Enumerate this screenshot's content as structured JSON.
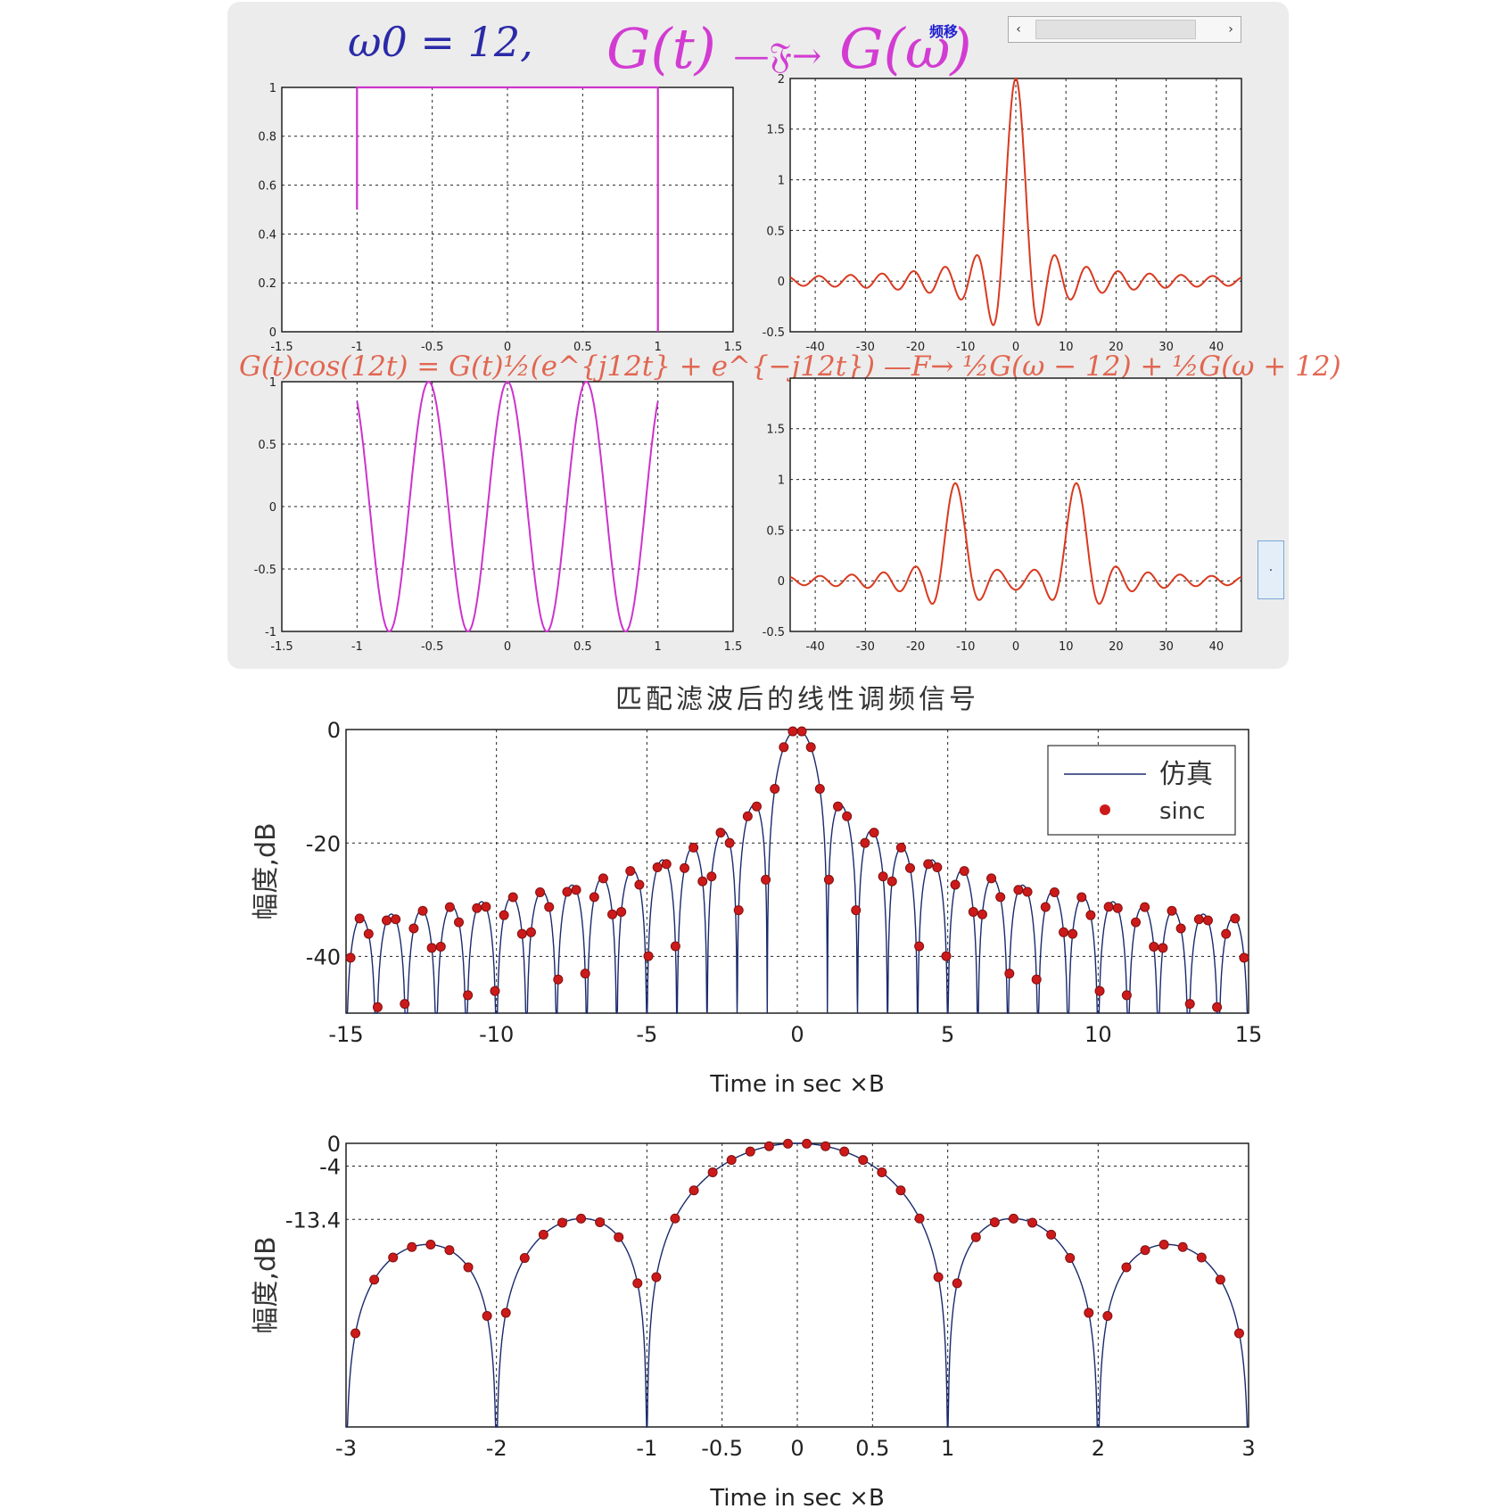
{
  "header": {
    "omega_label": "ω0 = 12,",
    "ft_lhs": "G(t)",
    "ft_arrow": "—𝔉→",
    "ft_rhs": "G(ω)",
    "ft_note": "频移",
    "modulation_equation": "G(t)cos(12t) = G(t)½(e^{j12t} + e^{−j12t})  —F→  ½G(ω − 12) + ½G(ω + 12)"
  },
  "controls": {
    "scroll_left": "‹",
    "scroll_right": "›",
    "side_button": "·"
  },
  "colors": {
    "magenta": "#cc33cc",
    "red": "#d83a20",
    "navy": "#1a2a6c",
    "marker": "#cc1a1a",
    "grid": "#222222"
  },
  "chart_data": [
    {
      "id": "gate",
      "type": "line",
      "title": "",
      "xlabel": "",
      "ylabel": "",
      "xlim": [
        -1.5,
        1.5
      ],
      "ylim": [
        0,
        1
      ],
      "xticks": [
        "-1.5",
        "-1",
        "-0.5",
        "0",
        "0.5",
        "1",
        "1.5"
      ],
      "yticks": [
        "0",
        "0.2",
        "0.4",
        "0.6",
        "0.8",
        "1"
      ],
      "grid": true,
      "series": [
        {
          "function": "rect",
          "x": [
            -1.5,
            -1,
            -1,
            1,
            1,
            1.5
          ],
          "y": [
            0,
            0.5,
            1,
            1,
            0,
            0
          ]
        }
      ]
    },
    {
      "id": "gate_spectrum",
      "type": "line",
      "title": "",
      "xlabel": "",
      "ylabel": "",
      "xlim": [
        -45,
        45
      ],
      "ylim": [
        -0.5,
        2
      ],
      "xticks": [
        "-40",
        "-30",
        "-20",
        "-10",
        "0",
        "10",
        "20",
        "30",
        "40"
      ],
      "yticks": [
        "-0.5",
        "0",
        "0.5",
        "1",
        "1.5",
        "2"
      ],
      "grid": true,
      "series": [
        {
          "function": "2*sin(w)/w",
          "peak": 2,
          "first_zero": 3.14
        }
      ]
    },
    {
      "id": "modulated",
      "type": "line",
      "title": "",
      "xlabel": "",
      "ylabel": "",
      "xlim": [
        -1.5,
        1.5
      ],
      "ylim": [
        -1,
        1
      ],
      "xticks": [
        "-1.5",
        "-1",
        "-0.5",
        "0",
        "0.5",
        "1",
        "1.5"
      ],
      "yticks": [
        "-1",
        "-0.5",
        "0",
        "0.5",
        "1"
      ],
      "grid": true,
      "series": [
        {
          "function": "cos(12t) on |t|<1",
          "carrier": 12
        }
      ]
    },
    {
      "id": "modulated_spectrum",
      "type": "line",
      "title": "",
      "xlabel": "",
      "ylabel": "",
      "xlim": [
        -45,
        45
      ],
      "ylim": [
        -0.5,
        2
      ],
      "xticks": [
        "-40",
        "-30",
        "-20",
        "-10",
        "0",
        "10",
        "20",
        "30",
        "40"
      ],
      "yticks": [
        "-0.5",
        "0",
        "0.5",
        "1",
        "1.5"
      ],
      "grid": true,
      "series": [
        {
          "function": "sinc(w-12)+sinc(w+12)",
          "peaks": [
            [
              -12,
              1
            ],
            [
              12,
              1
            ]
          ]
        }
      ]
    },
    {
      "id": "matched_filter_wide",
      "type": "line",
      "title": "匹配滤波后的线性调频信号",
      "xlabel": "Time in sec ×B",
      "ylabel": "幅度,dB",
      "xlim": [
        -15,
        15
      ],
      "ylim": [
        -50,
        0
      ],
      "xticks": [
        "-15",
        "-10",
        "-5",
        "0",
        "5",
        "10",
        "15"
      ],
      "yticks": [
        "0",
        "-20",
        "-40"
      ],
      "grid": true,
      "legend": {
        "position": "top-right",
        "entries": [
          "仿真",
          "sinc"
        ]
      },
      "series": [
        {
          "name": "仿真",
          "function": "20*log10|sinc(x)|",
          "floor_db": -50
        },
        {
          "name": "sinc",
          "style": "markers",
          "step": 0.3
        }
      ]
    },
    {
      "id": "matched_filter_zoom",
      "type": "line",
      "title": "",
      "xlabel": "Time in sec ×B",
      "ylabel": "幅度,dB",
      "xlim": [
        -3,
        3
      ],
      "ylim": [
        -50,
        0
      ],
      "xticks": [
        "-3",
        "-2",
        "-1",
        "-0.5",
        "0",
        "0.5",
        "1",
        "2",
        "3"
      ],
      "yticks": [
        "0",
        "-4",
        "-13.4"
      ],
      "grid": true,
      "annotations": [
        "-13.4"
      ],
      "series": [
        {
          "name": "仿真",
          "function": "20*log10|sinc(x)|"
        },
        {
          "name": "sinc",
          "style": "markers",
          "step": 0.125
        }
      ]
    }
  ]
}
